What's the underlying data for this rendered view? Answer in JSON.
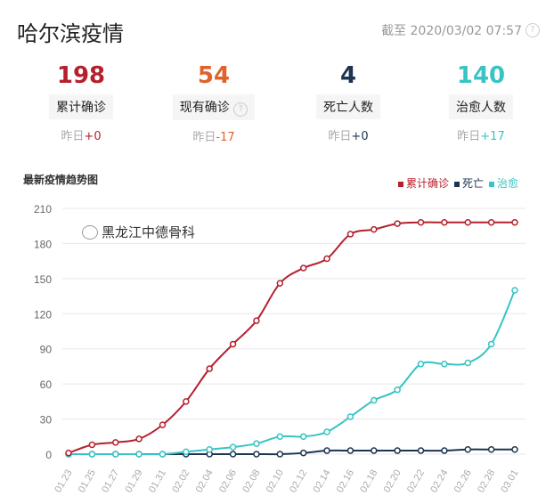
{
  "header": {
    "title": "哈尔滨疫情",
    "as_of": "截至 2020/03/02 07:57",
    "help_icon": "question-circle-icon"
  },
  "stats": [
    {
      "value": "198",
      "label": "累计确诊",
      "delta_prefix": "昨日",
      "delta": "+0",
      "color": "#b5202e",
      "help": false
    },
    {
      "value": "54",
      "label": "现有确诊",
      "delta_prefix": "昨日",
      "delta": "-17",
      "color": "#e0622a",
      "help": true
    },
    {
      "value": "4",
      "label": "死亡人数",
      "delta_prefix": "昨日",
      "delta": "+0",
      "color": "#1d3550",
      "help": false
    },
    {
      "value": "140",
      "label": "治愈人数",
      "delta_prefix": "昨日",
      "delta": "+17",
      "color": "#38c4c4",
      "help": false
    }
  ],
  "watermark": "黑龙江中德骨科",
  "chart_data": {
    "type": "line",
    "title": "最新疫情趋势图",
    "categories": [
      "01.23",
      "01.25",
      "01.27",
      "01.29",
      "01.31",
      "02.02",
      "02.04",
      "02.06",
      "02.08",
      "02.10",
      "02.12",
      "02.14",
      "02.16",
      "02.18",
      "02.20",
      "02.22",
      "02.24",
      "02.26",
      "02.28",
      "03.01"
    ],
    "ylim": [
      0,
      210
    ],
    "yticks": [
      0,
      30,
      60,
      90,
      120,
      150,
      180,
      210
    ],
    "grid": true,
    "legend": "top-right",
    "series": [
      {
        "name": "累计确诊",
        "color": "#b5202e",
        "values": [
          1,
          8,
          10,
          13,
          25,
          45,
          73,
          94,
          114,
          146,
          159,
          167,
          188,
          192,
          197,
          198,
          198,
          198,
          198,
          198
        ]
      },
      {
        "name": "死亡",
        "color": "#1d3550",
        "values": [
          0,
          0,
          0,
          0,
          0,
          0,
          0,
          0,
          0,
          0,
          1,
          3,
          3,
          3,
          3,
          3,
          3,
          4,
          4,
          4
        ]
      },
      {
        "name": "治愈",
        "color": "#38c4c4",
        "values": [
          0,
          0,
          0,
          0,
          0,
          2,
          4,
          6,
          9,
          15,
          15,
          19,
          32,
          46,
          55,
          77,
          77,
          78,
          94,
          140
        ]
      }
    ]
  }
}
